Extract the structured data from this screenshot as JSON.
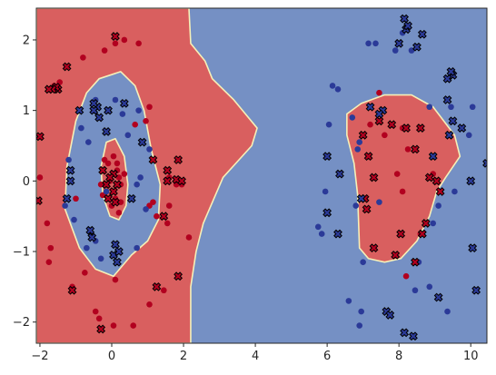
{
  "chart_data": {
    "type": "scatter",
    "title": "",
    "xlabel": "",
    "ylabel": "",
    "xlim": [
      -2.1,
      10.45
    ],
    "ylim": [
      -2.3,
      2.45
    ],
    "xticks": [
      -2,
      0,
      2,
      4,
      6,
      8,
      10
    ],
    "yticks": [
      -2,
      -1,
      0,
      1,
      2
    ],
    "grid": false,
    "legend": "none",
    "colors": {
      "class_red_region": "#d95f5f",
      "class_blue_region": "#7590c4",
      "boundary": "#f6f0b8",
      "point_red": "#b2001f",
      "point_blue": "#2b3a98",
      "marker_edge": "#000000"
    },
    "decision_regions": {
      "red_left": [
        [
          -2.1,
          2.45
        ],
        [
          2.15,
          2.45
        ],
        [
          2.2,
          1.95
        ],
        [
          2.6,
          1.7
        ],
        [
          2.8,
          1.45
        ],
        [
          3.4,
          1.15
        ],
        [
          4.05,
          0.75
        ],
        [
          3.9,
          0.5
        ],
        [
          3.1,
          0.05
        ],
        [
          2.55,
          -0.6
        ],
        [
          2.35,
          -1.0
        ],
        [
          2.2,
          -1.5
        ],
        [
          2.2,
          -2.3
        ],
        [
          -2.1,
          -2.3
        ]
      ],
      "blue_ring": [
        [
          -0.35,
          1.45
        ],
        [
          0.25,
          1.55
        ],
        [
          0.65,
          1.35
        ],
        [
          0.9,
          1.0
        ],
        [
          1.1,
          0.45
        ],
        [
          1.35,
          -0.05
        ],
        [
          1.3,
          -0.55
        ],
        [
          1.0,
          -0.85
        ],
        [
          0.55,
          -1.05
        ],
        [
          0.05,
          -1.35
        ],
        [
          -0.45,
          -1.25
        ],
        [
          -0.9,
          -0.95
        ],
        [
          -1.3,
          -0.4
        ],
        [
          -1.25,
          0.2
        ],
        [
          -1.0,
          0.85
        ],
        [
          -0.7,
          1.25
        ]
      ],
      "red_core": [
        [
          -0.15,
          0.55
        ],
        [
          0.1,
          0.6
        ],
        [
          0.35,
          0.35
        ],
        [
          0.45,
          -0.05
        ],
        [
          0.4,
          -0.35
        ],
        [
          0.2,
          -0.55
        ],
        [
          -0.05,
          -0.5
        ],
        [
          -0.25,
          -0.2
        ],
        [
          -0.3,
          0.2
        ]
      ],
      "red_right": [
        [
          6.95,
          1.1
        ],
        [
          7.6,
          1.22
        ],
        [
          8.35,
          1.22
        ],
        [
          8.95,
          1.05
        ],
        [
          9.55,
          0.65
        ],
        [
          9.7,
          0.35
        ],
        [
          9.3,
          0.05
        ],
        [
          9.05,
          -0.15
        ],
        [
          8.85,
          -0.5
        ],
        [
          8.5,
          -0.85
        ],
        [
          8.05,
          -1.1
        ],
        [
          7.6,
          -1.15
        ],
        [
          7.15,
          -1.1
        ],
        [
          6.9,
          -0.95
        ],
        [
          6.85,
          -0.2
        ],
        [
          6.75,
          0.25
        ],
        [
          6.55,
          0.65
        ],
        [
          6.55,
          0.95
        ]
      ]
    },
    "series": [
      {
        "class": "red",
        "marker": "circle",
        "points": [
          [
            -1.6,
            1.35
          ],
          [
            -1.45,
            1.4
          ],
          [
            -1.0,
            -0.25
          ],
          [
            -2.0,
            0.05
          ],
          [
            -1.8,
            -0.6
          ],
          [
            -1.7,
            -0.95
          ],
          [
            -1.75,
            -1.15
          ],
          [
            -1.1,
            -1.5
          ],
          [
            -0.8,
            1.75
          ],
          [
            -0.2,
            1.85
          ],
          [
            0.1,
            1.95
          ],
          [
            0.35,
            2.0
          ],
          [
            0.75,
            1.95
          ],
          [
            1.05,
            1.05
          ],
          [
            0.95,
            0.85
          ],
          [
            0.65,
            0.8
          ],
          [
            1.6,
            0.05
          ],
          [
            1.8,
            -0.05
          ],
          [
            1.95,
            -0.05
          ],
          [
            1.15,
            -0.3
          ],
          [
            1.25,
            -0.5
          ],
          [
            1.05,
            -0.35
          ],
          [
            1.6,
            -0.35
          ],
          [
            1.55,
            -0.6
          ],
          [
            2.15,
            -0.8
          ],
          [
            -0.2,
            0.3
          ],
          [
            -0.1,
            0.25
          ],
          [
            0.05,
            0.35
          ],
          [
            0.15,
            0.25
          ],
          [
            0.2,
            0.05
          ],
          [
            0.35,
            0.1
          ],
          [
            -0.05,
            0.0
          ],
          [
            0.25,
            -0.05
          ],
          [
            0.1,
            -0.25
          ],
          [
            0.0,
            -0.35
          ],
          [
            0.25,
            -0.3
          ],
          [
            0.15,
            0.15
          ],
          [
            -0.3,
            -0.05
          ],
          [
            -0.25,
            -0.2
          ],
          [
            0.2,
            -0.45
          ],
          [
            0.1,
            -1.4
          ],
          [
            -0.35,
            -1.95
          ],
          [
            0.05,
            -2.05
          ],
          [
            0.6,
            -2.05
          ],
          [
            1.05,
            -1.75
          ],
          [
            1.45,
            -1.55
          ],
          [
            -0.75,
            -1.3
          ],
          [
            -0.45,
            -1.85
          ],
          [
            8.95,
            0.1
          ],
          [
            7.45,
            1.25
          ],
          [
            7.2,
            0.8
          ],
          [
            7.6,
            0.65
          ],
          [
            8.1,
            0.75
          ],
          [
            8.25,
            0.45
          ],
          [
            7.95,
            0.1
          ],
          [
            8.1,
            -0.15
          ],
          [
            8.6,
            -0.75
          ],
          [
            8.2,
            -1.35
          ]
        ]
      },
      {
        "class": "blue",
        "marker": "circle",
        "points": [
          [
            -0.7,
            -0.95
          ],
          [
            -0.45,
            -0.85
          ],
          [
            -0.3,
            -1.1
          ],
          [
            0.7,
            -0.95
          ],
          [
            0.95,
            -0.4
          ],
          [
            0.7,
            -0.05
          ],
          [
            0.45,
            0.65
          ],
          [
            -0.65,
            0.55
          ],
          [
            -0.85,
            0.75
          ],
          [
            -0.45,
            1.15
          ],
          [
            0.1,
            1.15
          ],
          [
            -1.3,
            -0.35
          ],
          [
            -1.05,
            -0.55
          ],
          [
            -1.2,
            0.3
          ],
          [
            -1.15,
            0.15
          ],
          [
            -0.5,
            1.0
          ],
          [
            0.3,
            0.95
          ],
          [
            0.75,
            1.0
          ],
          [
            1.05,
            0.45
          ],
          [
            0.8,
            0.05
          ],
          [
            -0.15,
            -0.15
          ],
          [
            7.9,
            1.85
          ],
          [
            8.35,
            1.85
          ],
          [
            7.15,
            1.95
          ],
          [
            8.1,
            2.1
          ],
          [
            7.35,
            1.95
          ],
          [
            6.85,
            0.45
          ],
          [
            6.7,
            0.9
          ],
          [
            6.3,
            1.3
          ],
          [
            6.15,
            1.35
          ],
          [
            6.05,
            0.8
          ],
          [
            6.9,
            0.55
          ],
          [
            5.75,
            -0.65
          ],
          [
            5.85,
            -0.75
          ],
          [
            5.95,
            -0.15
          ],
          [
            7.45,
            -0.3
          ],
          [
            6.8,
            -0.35
          ],
          [
            8.85,
            1.05
          ],
          [
            9.45,
            1.05
          ],
          [
            10.05,
            1.05
          ],
          [
            9.95,
            0.65
          ],
          [
            9.55,
            -0.15
          ],
          [
            9.1,
            -0.35
          ],
          [
            8.95,
            -0.6
          ],
          [
            8.55,
            -1.15
          ],
          [
            6.6,
            -1.7
          ],
          [
            7.0,
            -1.15
          ],
          [
            6.95,
            -1.85
          ],
          [
            6.9,
            -2.05
          ],
          [
            8.45,
            -1.55
          ],
          [
            9.35,
            -1.85
          ],
          [
            8.85,
            -1.5
          ]
        ]
      },
      {
        "class": "red",
        "marker": "x",
        "points": [
          [
            0.1,
            2.05
          ],
          [
            -1.5,
            1.3
          ],
          [
            -1.55,
            1.33
          ],
          [
            -1.65,
            1.3
          ],
          [
            -1.75,
            1.3
          ],
          [
            -1.25,
            1.62
          ],
          [
            -2.0,
            0.63
          ],
          [
            -2.05,
            -0.28
          ],
          [
            1.15,
            0.3
          ],
          [
            1.55,
            0.0
          ],
          [
            -0.15,
            -0.05
          ],
          [
            -0.25,
            0.15
          ],
          [
            0.05,
            -0.15
          ],
          [
            0.05,
            0.1
          ],
          [
            0.1,
            -0.3
          ],
          [
            0.15,
            -0.05
          ],
          [
            -0.1,
            -0.25
          ],
          [
            -0.05,
            0.05
          ],
          [
            1.8,
            0.02
          ],
          [
            1.95,
            0.0
          ],
          [
            1.55,
            0.15
          ],
          [
            1.85,
            0.3
          ],
          [
            1.45,
            -0.5
          ],
          [
            -1.1,
            -1.55
          ],
          [
            -0.3,
            -2.1
          ],
          [
            1.25,
            -1.5
          ],
          [
            1.85,
            -1.35
          ],
          [
            7.8,
            0.8
          ],
          [
            7.45,
            0.85
          ],
          [
            7.0,
            0.65
          ],
          [
            7.15,
            0.35
          ],
          [
            7.3,
            0.05
          ],
          [
            7.05,
            -0.25
          ],
          [
            7.1,
            -0.4
          ],
          [
            8.2,
            0.75
          ],
          [
            8.6,
            0.75
          ],
          [
            8.45,
            0.45
          ],
          [
            9.05,
            0.0
          ],
          [
            8.85,
            0.05
          ],
          [
            9.15,
            -0.15
          ],
          [
            8.75,
            -0.6
          ],
          [
            8.65,
            -0.75
          ],
          [
            8.05,
            -0.75
          ],
          [
            8.45,
            -1.15
          ],
          [
            7.9,
            -1.05
          ],
          [
            7.3,
            -0.95
          ]
        ]
      },
      {
        "class": "blue",
        "marker": "x",
        "points": [
          [
            -0.55,
            -0.8
          ],
          [
            -0.6,
            -0.7
          ],
          [
            0.1,
            -0.9
          ],
          [
            0.05,
            -1.05
          ],
          [
            0.2,
            -1.0
          ],
          [
            0.15,
            -1.15
          ],
          [
            0.55,
            -0.25
          ],
          [
            -0.15,
            0.7
          ],
          [
            -0.35,
            0.9
          ],
          [
            -0.9,
            1.0
          ],
          [
            -0.4,
            1.05
          ],
          [
            -0.5,
            1.1
          ],
          [
            -0.1,
            1.0
          ],
          [
            0.35,
            1.1
          ],
          [
            -1.15,
            0.15
          ],
          [
            -1.15,
            0.0
          ],
          [
            -1.25,
            -0.25
          ],
          [
            -0.5,
            1.0
          ],
          [
            0.85,
            0.55
          ],
          [
            7.55,
            1.0
          ],
          [
            7.45,
            0.95
          ],
          [
            7.2,
            1.05
          ],
          [
            8.15,
            2.3
          ],
          [
            8.0,
            1.95
          ],
          [
            8.5,
            1.9
          ],
          [
            8.65,
            2.08
          ],
          [
            8.2,
            2.15
          ],
          [
            8.25,
            2.2
          ],
          [
            6.0,
            0.35
          ],
          [
            6.35,
            0.1
          ],
          [
            6.0,
            -0.45
          ],
          [
            6.3,
            -0.75
          ],
          [
            6.95,
            -0.25
          ],
          [
            8.95,
            0.35
          ],
          [
            9.35,
            1.15
          ],
          [
            9.4,
            0.65
          ],
          [
            9.5,
            0.85
          ],
          [
            9.75,
            0.75
          ],
          [
            10.0,
            0.0
          ],
          [
            10.05,
            -0.95
          ],
          [
            10.15,
            -1.55
          ],
          [
            10.45,
            0.25
          ],
          [
            9.5,
            1.5
          ],
          [
            9.35,
            1.45
          ],
          [
            9.45,
            1.55
          ],
          [
            7.65,
            -1.85
          ],
          [
            7.75,
            -1.9
          ],
          [
            8.4,
            -2.2
          ],
          [
            8.15,
            -2.15
          ],
          [
            9.1,
            -1.65
          ]
        ]
      }
    ]
  }
}
